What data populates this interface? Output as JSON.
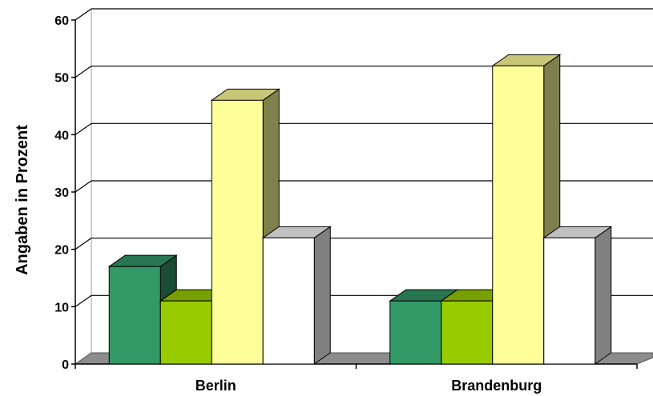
{
  "chart_data": {
    "type": "bar",
    "title": "",
    "xlabel": "",
    "ylabel": "Angaben in Prozent",
    "ylim": [
      0,
      60
    ],
    "yticks": [
      0,
      10,
      20,
      30,
      40,
      50,
      60
    ],
    "categories": [
      "Berlin",
      "Brandenburg"
    ],
    "series": [
      {
        "values": [
          17,
          11
        ],
        "color": "#339966"
      },
      {
        "values": [
          11,
          11
        ],
        "color": "#99cc00"
      },
      {
        "values": [
          46,
          52
        ],
        "color": "#ffff99"
      },
      {
        "values": [
          22,
          22
        ],
        "color": "#ffffff"
      }
    ],
    "grid": true,
    "legend": "none",
    "style": "3d-clustered-column"
  }
}
